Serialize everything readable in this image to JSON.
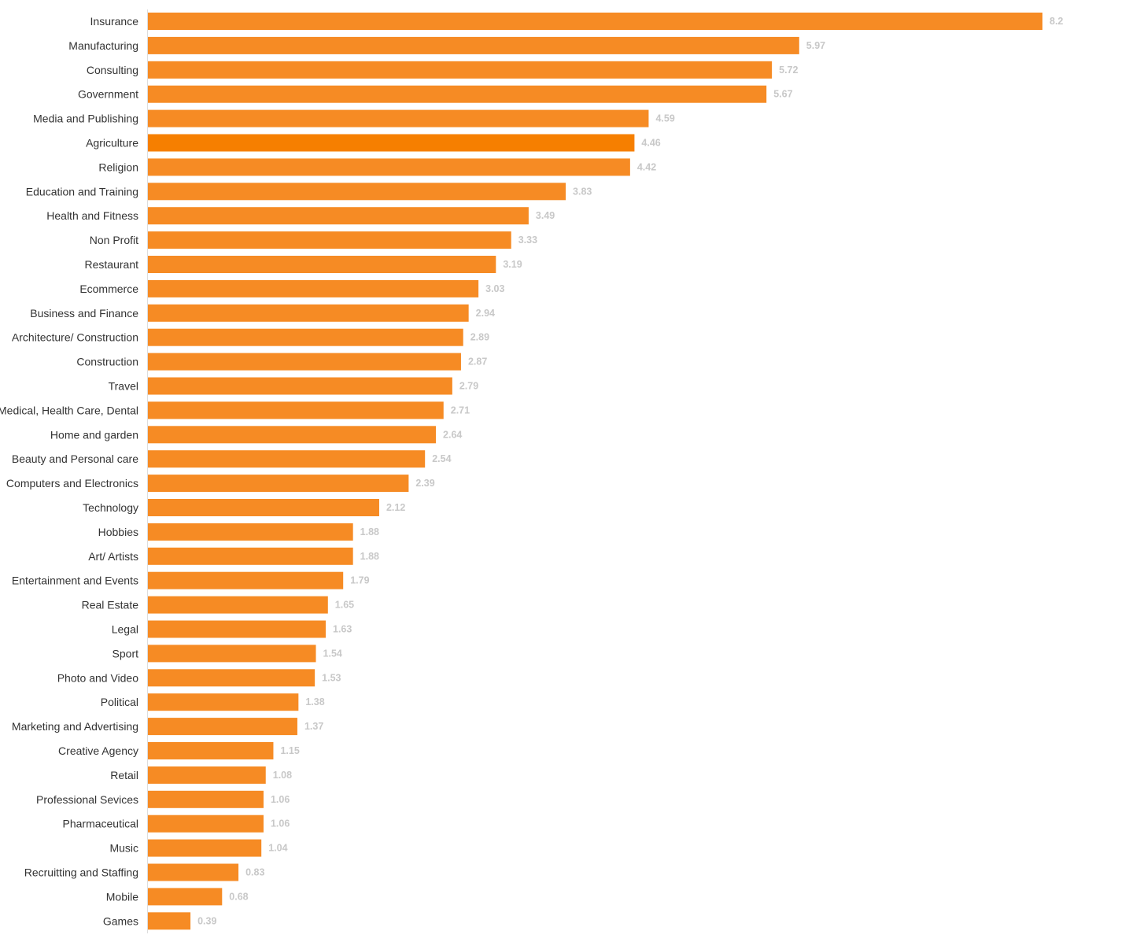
{
  "chart_data": {
    "type": "bar",
    "orientation": "horizontal",
    "categories": [
      "Insurance",
      "Manufacturing",
      "Consulting",
      "Government",
      "Media and Publishing",
      "Agriculture",
      "Religion",
      "Education and Training",
      "Health and Fitness",
      "Non Profit",
      "Restaurant",
      "Ecommerce",
      "Business and Finance",
      "Architecture/ Construction",
      "Construction",
      "Travel",
      "Medical, Health Care, Dental",
      "Home and garden",
      "Beauty and Personal care",
      "Computers and Electronics",
      "Technology",
      "Hobbies",
      "Art/ Artists",
      "Entertainment and Events",
      "Real Estate",
      "Legal",
      "Sport",
      "Photo and Video",
      "Political",
      "Marketing and Advertising",
      "Creative Agency",
      "Retail",
      "Professional Sevices",
      "Pharmaceutical",
      "Music",
      "Recruitting and Staffing",
      "Mobile",
      "Games"
    ],
    "values": [
      8.2,
      5.97,
      5.72,
      5.67,
      4.59,
      4.46,
      4.42,
      3.83,
      3.49,
      3.33,
      3.19,
      3.03,
      2.94,
      2.89,
      2.87,
      2.79,
      2.71,
      2.64,
      2.54,
      2.39,
      2.12,
      1.88,
      1.88,
      1.79,
      1.65,
      1.63,
      1.54,
      1.53,
      1.38,
      1.37,
      1.15,
      1.08,
      1.06,
      1.06,
      1.04,
      0.83,
      0.68,
      0.39
    ],
    "value_labels": [
      "8.2",
      "5.97",
      "5.72",
      "5.67",
      "4.59",
      "4.46",
      "4.42",
      "3.83",
      "3.49",
      "3.33",
      "3.19",
      "3.03",
      "2.94",
      "2.89",
      "2.87",
      "2.79",
      "2.71",
      "2.64",
      "2.54",
      "2.39",
      "2.12",
      "1.88",
      "1.88",
      "1.79",
      "1.65",
      "1.63",
      "1.54",
      "1.53",
      "1.38",
      "1.37",
      "1.15",
      "1.08",
      "1.06",
      "1.06",
      "1.04",
      "0.83",
      "0.68",
      "0.39"
    ],
    "highlighted_category": "Agriculture",
    "xlim": [
      0,
      8.2
    ],
    "grid": false,
    "legend": "none",
    "title": "",
    "xlabel": "",
    "ylabel": ""
  },
  "colors": {
    "bar": "#f68b24",
    "bar_highlight": "#f67f00",
    "category_label": "#333333",
    "value_label": "#c8c8c8",
    "axis_line": "#dddddd"
  }
}
